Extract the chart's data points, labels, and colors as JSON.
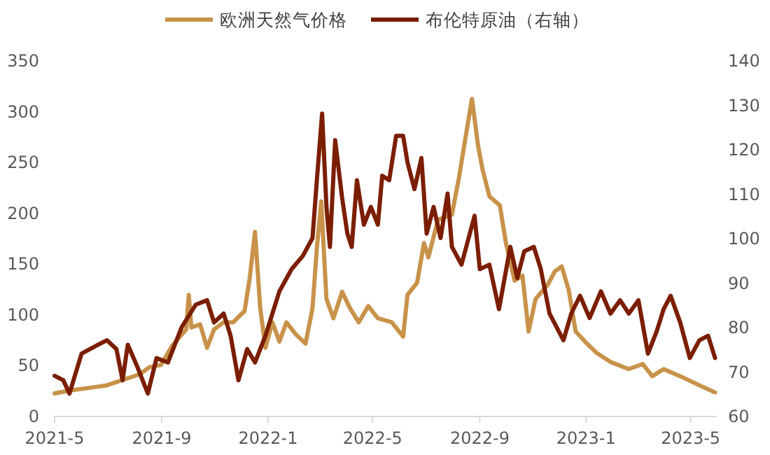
{
  "chart_data": {
    "type": "line",
    "legend": "top",
    "marker": "none",
    "line_style": "solid",
    "grid": false,
    "xlim": [
      "2021-05-01",
      "2023-05-31"
    ],
    "xticks": [
      {
        "value": "2021-05-01",
        "label": "2021-5"
      },
      {
        "value": "2021-09-01",
        "label": "2021-9"
      },
      {
        "value": "2022-01-01",
        "label": "2022-1"
      },
      {
        "value": "2022-05-01",
        "label": "2022-5"
      },
      {
        "value": "2022-09-01",
        "label": "2022-9"
      },
      {
        "value": "2023-01-01",
        "label": "2023-1"
      },
      {
        "value": "2023-05-01",
        "label": "2023-5"
      }
    ],
    "ylim": [
      0,
      350
    ],
    "yticks": [
      0,
      50,
      100,
      150,
      200,
      250,
      300,
      350
    ],
    "y2lim": [
      60,
      140
    ],
    "y2ticks": [
      60,
      70,
      80,
      90,
      100,
      110,
      120,
      130,
      140
    ],
    "series": [
      {
        "name": "欧洲天然气价格",
        "color": "#c8924a",
        "x": [
          "2021-05-01",
          "2021-05-19",
          "2021-06-14",
          "2021-06-30",
          "2021-08-07",
          "2021-08-18",
          "2021-08-31",
          "2021-09-13",
          "2021-09-29",
          "2021-10-02",
          "2021-10-05",
          "2021-10-15",
          "2021-10-23",
          "2021-10-31",
          "2021-11-11",
          "2021-11-22",
          "2021-11-30",
          "2021-12-05",
          "2021-12-11",
          "2021-12-17",
          "2021-12-23",
          "2021-12-29",
          "2022-01-06",
          "2022-01-14",
          "2022-01-22",
          "2022-02-02",
          "2022-02-13",
          "2022-02-21",
          "2022-02-26",
          "2022-03-03",
          "2022-03-09",
          "2022-03-17",
          "2022-03-27",
          "2022-04-05",
          "2022-04-15",
          "2022-04-26",
          "2022-05-07",
          "2022-05-23",
          "2022-06-05",
          "2022-06-10",
          "2022-06-21",
          "2022-06-29",
          "2022-07-04",
          "2022-07-15",
          "2022-07-31",
          "2022-08-08",
          "2022-08-16",
          "2022-08-23",
          "2022-08-30",
          "2022-09-04",
          "2022-09-12",
          "2022-09-24",
          "2022-10-01",
          "2022-10-11",
          "2022-10-20",
          "2022-10-27",
          "2022-11-04",
          "2022-11-18",
          "2022-11-26",
          "2022-12-04",
          "2022-12-12",
          "2022-12-20",
          "2023-01-02",
          "2023-01-13",
          "2023-01-29",
          "2023-02-19",
          "2023-03-07",
          "2023-03-18",
          "2023-03-31",
          "2023-04-19",
          "2023-05-16",
          "2023-05-29"
        ],
        "values": [
          22,
          25,
          28,
          30,
          41,
          48,
          50,
          69,
          85,
          119,
          87,
          90,
          67,
          85,
          92,
          92,
          99,
          103,
          136,
          181,
          106,
          67,
          92,
          73,
          92,
          80,
          71,
          106,
          165,
          211,
          115,
          96,
          122,
          106,
          92,
          108,
          96,
          92,
          78,
          119,
          131,
          170,
          156,
          193,
          198,
          234,
          276,
          312,
          266,
          243,
          216,
          207,
          170,
          133,
          138,
          83,
          115,
          129,
          142,
          147,
          124,
          83,
          71,
          62,
          53,
          46,
          51,
          39,
          46,
          39,
          28,
          23
        ]
      },
      {
        "name": "布伦特原油（右轴）",
        "color": "#7b1e00",
        "axis": "y2",
        "x": [
          "2021-05-01",
          "2021-05-11",
          "2021-05-18",
          "2021-06-01",
          "2021-06-20",
          "2021-06-30",
          "2021-07-11",
          "2021-07-18",
          "2021-07-24",
          "2021-08-04",
          "2021-08-16",
          "2021-08-26",
          "2021-09-08",
          "2021-09-24",
          "2021-10-10",
          "2021-10-23",
          "2021-10-31",
          "2021-11-11",
          "2021-11-19",
          "2021-11-28",
          "2021-12-08",
          "2021-12-17",
          "2021-12-29",
          "2022-01-14",
          "2022-01-28",
          "2022-02-10",
          "2022-02-21",
          "2022-02-26",
          "2022-03-04",
          "2022-03-09",
          "2022-03-13",
          "2022-03-19",
          "2022-03-27",
          "2022-04-02",
          "2022-04-07",
          "2022-04-13",
          "2022-04-21",
          "2022-04-29",
          "2022-05-07",
          "2022-05-12",
          "2022-05-20",
          "2022-05-28",
          "2022-06-05",
          "2022-06-10",
          "2022-06-18",
          "2022-06-26",
          "2022-07-02",
          "2022-07-10",
          "2022-07-18",
          "2022-07-26",
          "2022-07-31",
          "2022-08-11",
          "2022-08-26",
          "2022-09-01",
          "2022-09-12",
          "2022-09-23",
          "2022-10-06",
          "2022-10-14",
          "2022-10-22",
          "2022-11-02",
          "2022-11-10",
          "2022-11-20",
          "2022-12-06",
          "2022-12-15",
          "2022-12-25",
          "2023-01-05",
          "2023-01-18",
          "2023-01-29",
          "2023-02-09",
          "2023-02-19",
          "2023-03-02",
          "2023-03-13",
          "2023-03-23",
          "2023-03-31",
          "2023-04-08",
          "2023-04-19",
          "2023-04-30",
          "2023-05-11",
          "2023-05-21",
          "2023-05-29"
        ],
        "values": [
          69,
          68,
          65,
          74,
          76,
          77,
          75,
          68,
          76,
          71,
          65,
          73,
          72,
          80,
          85,
          86,
          81,
          83,
          78,
          68,
          75,
          72,
          78,
          88,
          93,
          96,
          100,
          113,
          128,
          107,
          98,
          122,
          109,
          101,
          98,
          113,
          103,
          107,
          103,
          114,
          113,
          123,
          123,
          117,
          111,
          118,
          101,
          107,
          100,
          110,
          98,
          94,
          105,
          93,
          94,
          84,
          98,
          91,
          97,
          98,
          93,
          83,
          77,
          83,
          87,
          82,
          88,
          83,
          86,
          83,
          86,
          74,
          79,
          84,
          87,
          81,
          73,
          77,
          78,
          73
        ]
      }
    ]
  }
}
